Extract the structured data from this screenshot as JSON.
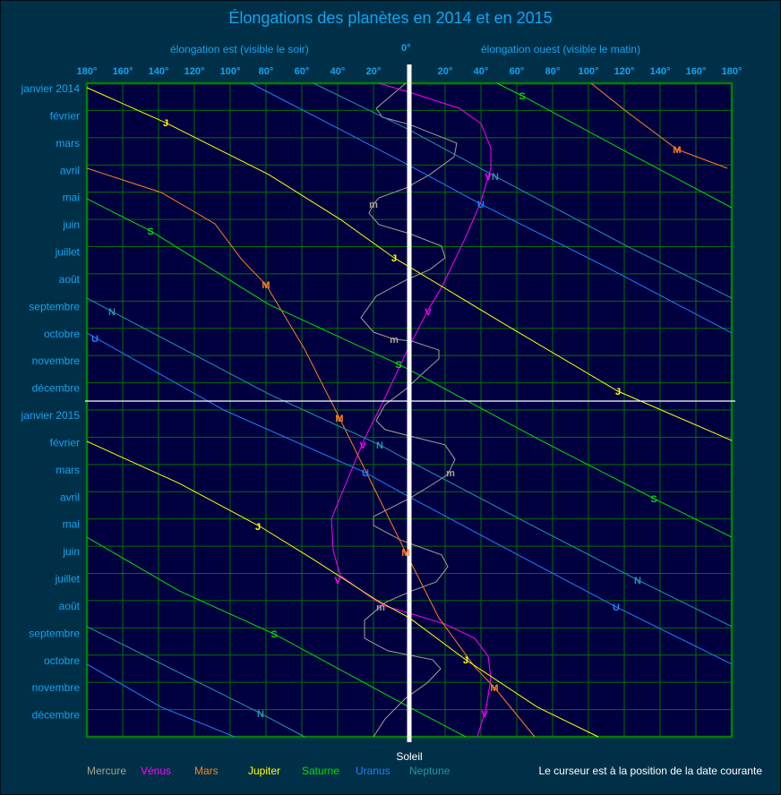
{
  "chart_data": {
    "type": "line",
    "title": "Élongations des planètes en 2014 et en 2015",
    "xlabel_east": "élongation est (visible le soir)",
    "xlabel_west": "élongation ouest (visible le matin)",
    "zero_label": "0°",
    "sun_label": "Soleil",
    "x_ticks_east": [
      "180°",
      "160°",
      "140°",
      "120°",
      "100°",
      "80°",
      "60°",
      "40°",
      "20°"
    ],
    "x_ticks_west": [
      "20°",
      "40°",
      "60°",
      "80°",
      "100°",
      "120°",
      "140°",
      "160°",
      "180°"
    ],
    "xlim": [
      -180,
      180
    ],
    "x_note": "negative = east elongation (left), positive = west elongation (right)",
    "y_unit": "months since janvier 2014",
    "ylim": [
      0,
      24
    ],
    "y_ticks": [
      "janvier 2014",
      "février",
      "mars",
      "avril",
      "mai",
      "juin",
      "juillet",
      "août",
      "septembre",
      "octobre",
      "novembre",
      "décembre",
      "janvier 2015",
      "février",
      "mars",
      "avril",
      "mai",
      "juin",
      "juillet",
      "août",
      "septembre",
      "octobre",
      "novembre",
      "décembre"
    ],
    "grid": true,
    "cursor_month": 11.67,
    "cursor_note": "Le curseur est à la position de la date courante",
    "series": [
      {
        "name": "Mercure",
        "letter": "m",
        "color": "#a8a290",
        "segments": [
          [
            [
              -2,
              0
            ],
            [
              -18.5,
              0.92
            ],
            [
              -15,
              1.25
            ],
            [
              0,
              1.51
            ],
            [
              26.5,
              2.2
            ],
            [
              25,
              2.7
            ],
            [
              11.5,
              3.35
            ],
            [
              -2,
              3.85
            ],
            [
              -17,
              4.21
            ],
            [
              -20,
              4.44
            ],
            [
              -22.5,
              4.77
            ],
            [
              -17,
              5.19
            ],
            [
              0,
              5.52
            ],
            [
              18,
              5.98
            ],
            [
              20,
              6.41
            ],
            [
              11.5,
              6.84
            ],
            [
              -2,
              7.23
            ],
            [
              -18.5,
              7.82
            ],
            [
              -27,
              8.61
            ],
            [
              -20,
              9.14
            ],
            [
              -8.5,
              9.4
            ],
            [
              1.5,
              9.47
            ],
            [
              16.5,
              9.8
            ],
            [
              16.5,
              10.12
            ],
            [
              8,
              10.62
            ],
            [
              -2,
              11.24
            ],
            [
              -13.5,
              11.8
            ],
            [
              -18.5,
              12.39
            ],
            [
              -13.5,
              12.72
            ],
            [
              0,
              12.95
            ],
            [
              20,
              13.28
            ],
            [
              25.5,
              13.81
            ],
            [
              21.5,
              14.37
            ],
            [
              11.5,
              14.79
            ],
            [
              0,
              15.25
            ],
            [
              -20,
              15.91
            ],
            [
              -20,
              16.24
            ],
            [
              -5,
              16.77
            ],
            [
              18,
              17.32
            ],
            [
              21.5,
              17.75
            ],
            [
              15,
              18.31
            ],
            [
              1.5,
              18.64
            ],
            [
              -13.5,
              19.07
            ],
            [
              -25,
              19.72
            ],
            [
              -25,
              20.38
            ],
            [
              -12,
              20.84
            ],
            [
              13,
              21.17
            ],
            [
              17.5,
              21.5
            ],
            [
              10,
              22.02
            ],
            [
              -2,
              22.58
            ],
            [
              -13.5,
              23.34
            ],
            [
              -20,
              24
            ]
          ]
        ],
        "labels": [
          [
            -20,
            4.44
          ],
          [
            -8.5,
            9.4
          ],
          [
            23,
            14.3
          ],
          [
            -16,
            19.23
          ]
        ]
      },
      {
        "name": "Vénus",
        "letter": "V",
        "color": "#ff00ff",
        "segments": [
          [
            [
              -17,
              0
            ],
            [
              0,
              0.33
            ],
            [
              28,
              0.92
            ],
            [
              40,
              1.48
            ],
            [
              45.5,
              2.37
            ],
            [
              45.5,
              3.12
            ],
            [
              40,
              4.34
            ],
            [
              31.5,
              5.65
            ],
            [
              18,
              7.5
            ],
            [
              10.5,
              8.32
            ],
            [
              1.5,
              9.47
            ],
            [
              -2,
              9.93
            ],
            [
              -15,
              11.74
            ],
            [
              -25,
              13.05
            ],
            [
              -38.5,
              15.19
            ],
            [
              -43.5,
              16.01
            ],
            [
              -42.5,
              17.16
            ],
            [
              -38.5,
              18.08
            ],
            [
              -19.5,
              18.97
            ],
            [
              -13.5,
              19.2
            ],
            [
              0,
              19.46
            ],
            [
              20,
              19.86
            ],
            [
              36.5,
              20.38
            ],
            [
              44,
              21.04
            ],
            [
              45.5,
              21.83
            ],
            [
              43,
              22.91
            ],
            [
              38,
              24
            ]
          ]
        ],
        "labels": [
          [
            44,
            3.42
          ],
          [
            10.5,
            8.38
          ],
          [
            -26,
            13.28
          ],
          [
            -40,
            18.24
          ],
          [
            42,
            23.14
          ]
        ]
      },
      {
        "name": "Mars",
        "letter": "M",
        "color": "#ff7f20",
        "segments": [
          [
            [
              101.5,
              0
            ],
            [
              121.5,
              1.05
            ],
            [
              149.5,
              2.43
            ],
            [
              177.5,
              3.12
            ]
          ],
          [
            [
              -180,
              3.12
            ],
            [
              -138.5,
              4.01
            ],
            [
              -108.5,
              5.16
            ],
            [
              -93.5,
              6.48
            ],
            [
              -80,
              7.4
            ],
            [
              -58.5,
              9.76
            ],
            [
              -39,
              12.29
            ],
            [
              -18.5,
              15.02
            ],
            [
              -2,
              17.23
            ],
            [
              16.5,
              19.63
            ],
            [
              36.5,
              21.43
            ],
            [
              47.5,
              22.19
            ],
            [
              70,
              24
            ]
          ]
        ],
        "labels": [
          [
            149.5,
            2.43
          ],
          [
            -80,
            7.4
          ],
          [
            -39,
            12.29
          ],
          [
            -2,
            17.23
          ],
          [
            47.5,
            22.19
          ]
        ]
      },
      {
        "name": "Jupiter",
        "letter": "J",
        "color": "#ffff00",
        "segments": [
          [
            [
              -180,
              0.16
            ],
            [
              -136,
              1.45
            ],
            [
              -78.5,
              3.35
            ],
            [
              -38.5,
              5.0
            ],
            [
              -8.5,
              6.41
            ],
            [
              0,
              6.74
            ],
            [
              51.5,
              8.78
            ],
            [
              116.5,
              11.31
            ],
            [
              180,
              13.12
            ]
          ],
          [
            [
              -180,
              13.15
            ],
            [
              -128.5,
              14.69
            ],
            [
              -83.5,
              16.27
            ],
            [
              -53.5,
              17.49
            ],
            [
              -18.5,
              18.97
            ],
            [
              0,
              19.63
            ],
            [
              31.5,
              21.17
            ],
            [
              71.5,
              22.91
            ],
            [
              105.5,
              24
            ]
          ]
        ],
        "labels": [
          [
            -136,
            1.45
          ],
          [
            -8.5,
            6.41
          ],
          [
            116.5,
            11.31
          ],
          [
            -84.5,
            16.27
          ],
          [
            31.5,
            21.17
          ]
        ]
      },
      {
        "name": "Saturne",
        "letter": "S",
        "color": "#00e000",
        "segments": [
          [
            [
              49,
              0
            ],
            [
              63,
              0.46
            ],
            [
              121.5,
              2.53
            ],
            [
              180,
              4.57
            ]
          ],
          [
            [
              -180,
              4.24
            ],
            [
              -144.5,
              5.42
            ],
            [
              -78.5,
              8.12
            ],
            [
              -6,
              10.32
            ],
            [
              0,
              10.52
            ],
            [
              71.5,
              13.05
            ],
            [
              136.5,
              15.25
            ],
            [
              180,
              16.67
            ]
          ],
          [
            [
              -180,
              16.67
            ],
            [
              -128.5,
              18.64
            ],
            [
              -75.5,
              20.22
            ],
            [
              0,
              22.91
            ],
            [
              31.5,
              24
            ]
          ]
        ],
        "labels": [
          [
            63,
            0.46
          ],
          [
            -144.5,
            5.42
          ],
          [
            -6,
            10.32
          ],
          [
            136.5,
            15.25
          ],
          [
            -75.5,
            20.22
          ]
        ]
      },
      {
        "name": "Uranus",
        "letter": "U",
        "color": "#2080ff",
        "segments": [
          [
            [
              -88.5,
              0
            ],
            [
              -28.5,
              2.04
            ],
            [
              0,
              3.02
            ],
            [
              40,
              4.44
            ],
            [
              111.5,
              6.8
            ],
            [
              180,
              9.17
            ]
          ],
          [
            [
              -180,
              9.17
            ],
            [
              -103.5,
              12
            ],
            [
              -24.5,
              14.3
            ],
            [
              0,
              15.19
            ],
            [
              51.5,
              17
            ],
            [
              115.5,
              19.23
            ],
            [
              180,
              21.33
            ]
          ],
          [
            [
              -180,
              21.33
            ],
            [
              -138.5,
              22.91
            ],
            [
              -97.5,
              24
            ]
          ]
        ],
        "labels": [
          [
            40,
            4.44
          ],
          [
            -175.5,
            9.37
          ],
          [
            -24.5,
            14.3
          ],
          [
            115.5,
            19.23
          ]
        ]
      },
      {
        "name": "Neptune",
        "letter": "N",
        "color": "#2098a8",
        "segments": [
          [
            [
              -53.5,
              0
            ],
            [
              0,
              1.71
            ],
            [
              48,
              3.42
            ],
            [
              121.5,
              5.98
            ],
            [
              180,
              7.89
            ]
          ],
          [
            [
              -180,
              7.89
            ],
            [
              -166,
              8.38
            ],
            [
              -78.5,
              11.41
            ],
            [
              -16.5,
              13.28
            ],
            [
              0,
              13.87
            ],
            [
              71.5,
              16.34
            ],
            [
              127.5,
              18.24
            ],
            [
              180,
              19.95
            ]
          ],
          [
            [
              -180,
              19.95
            ],
            [
              -83,
              23.14
            ],
            [
              -58.5,
              24
            ]
          ]
        ],
        "labels": [
          [
            48,
            3.42
          ],
          [
            -166,
            8.38
          ],
          [
            -16.5,
            13.28
          ],
          [
            127.5,
            18.24
          ],
          [
            -83,
            23.14
          ]
        ]
      }
    ]
  },
  "colors": {
    "background": "#003048",
    "plot": "#000040",
    "grid": "#007000",
    "text": "#12a4f0"
  }
}
